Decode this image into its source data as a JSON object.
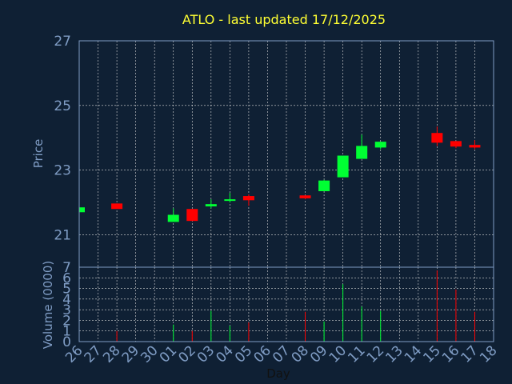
{
  "chart_data": {
    "type": "candlestick",
    "title": "ATLO - last updated 17/12/2025",
    "xlabel": "Day",
    "price_panel": {
      "ylabel": "Price",
      "ylim": [
        20,
        27
      ],
      "yticks": [
        "21",
        "23",
        "25",
        "27"
      ],
      "grid": true
    },
    "volume_panel": {
      "ylabel": "Volume (0000)",
      "ylim": [
        0,
        7
      ],
      "yticks": [
        "0",
        "1",
        "2",
        "3",
        "4",
        "5",
        "6",
        "7"
      ],
      "grid": true
    },
    "x_ticks": [
      "26",
      "27",
      "28",
      "29",
      "30",
      "01",
      "02",
      "03",
      "04",
      "05",
      "06",
      "07",
      "08",
      "09",
      "10",
      "11",
      "12",
      "13",
      "14",
      "15",
      "16",
      "17",
      "18"
    ],
    "candles": [
      {
        "day": "26",
        "open": 21.7,
        "close": 21.85,
        "high": 21.85,
        "low": 21.7,
        "volume": 0
      },
      {
        "day": "28",
        "open": 21.97,
        "close": 21.8,
        "high": 21.97,
        "low": 21.8,
        "volume": 1.0
      },
      {
        "day": "01",
        "open": 21.4,
        "close": 21.62,
        "high": 21.82,
        "low": 21.4,
        "volume": 1.6
      },
      {
        "day": "02",
        "open": 21.8,
        "close": 21.43,
        "high": 21.8,
        "low": 21.43,
        "volume": 1.0
      },
      {
        "day": "03",
        "open": 21.88,
        "close": 21.95,
        "high": 22.1,
        "low": 21.82,
        "volume": 2.9
      },
      {
        "day": "04",
        "open": 22.05,
        "close": 22.1,
        "high": 22.3,
        "low": 22.0,
        "volume": 1.5
      },
      {
        "day": "05",
        "open": 22.2,
        "close": 22.07,
        "high": 22.25,
        "low": 21.9,
        "volume": 1.8
      },
      {
        "day": "08",
        "open": 22.22,
        "close": 22.13,
        "high": 22.22,
        "low": 22.1,
        "volume": 2.8
      },
      {
        "day": "09",
        "open": 22.35,
        "close": 22.68,
        "high": 22.7,
        "low": 22.35,
        "volume": 1.9
      },
      {
        "day": "10",
        "open": 22.78,
        "close": 23.45,
        "high": 23.45,
        "low": 22.78,
        "volume": 5.4
      },
      {
        "day": "11",
        "open": 23.35,
        "close": 23.75,
        "high": 24.1,
        "low": 23.35,
        "volume": 3.3
      },
      {
        "day": "12",
        "open": 23.7,
        "close": 23.88,
        "high": 23.88,
        "low": 23.65,
        "volume": 2.9
      },
      {
        "day": "15",
        "open": 24.15,
        "close": 23.85,
        "high": 24.35,
        "low": 23.75,
        "volume": 6.7
      },
      {
        "day": "16",
        "open": 23.9,
        "close": 23.73,
        "high": 23.9,
        "low": 23.68,
        "volume": 4.9
      },
      {
        "day": "17",
        "open": 23.78,
        "close": 23.7,
        "high": 23.93,
        "low": 23.65,
        "volume": 2.8
      }
    ],
    "colors": {
      "background": "#0f2034",
      "frame": "#7f9cc4",
      "grid": "#d8d8d8",
      "up": "#00ff33",
      "down": "#ff0000",
      "text": "#7f9cc4",
      "title": "#ffff33"
    }
  }
}
